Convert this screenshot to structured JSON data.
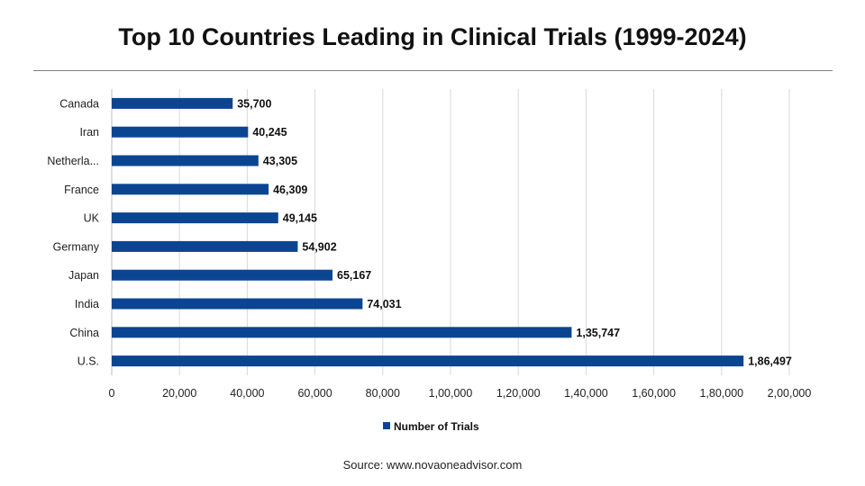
{
  "title": "Top 10 Countries Leading in Clinical Trials (1999-2024)",
  "source": "Source: www.novaoneadvisor.com",
  "colors": {
    "bar": "#0b4592",
    "grid": "#d9d9d9",
    "axis_text": "#222222",
    "label": "#111111"
  },
  "chart_data": {
    "type": "bar",
    "orientation": "horizontal",
    "categories": [
      "Canada",
      "Iran",
      "Netherla...",
      "France",
      "UK",
      "Germany",
      "Japan",
      "India",
      "China",
      "U.S."
    ],
    "series": [
      {
        "name": "Number of Trials",
        "values": [
          35700,
          40245,
          43305,
          46309,
          49145,
          54902,
          65167,
          74031,
          135747,
          186497
        ],
        "labels": [
          "35,700",
          "40,245",
          "43,305",
          "46,309",
          "49,145",
          "54,902",
          "65,167",
          "74,031",
          "1,35,747",
          "1,86,497"
        ]
      }
    ],
    "xlim": [
      0,
      200000
    ],
    "x_ticks": [
      0,
      20000,
      40000,
      60000,
      80000,
      100000,
      120000,
      140000,
      160000,
      180000,
      200000
    ],
    "x_tick_labels": [
      "0",
      "20,000",
      "40,000",
      "60,000",
      "80,000",
      "1,00,000",
      "1,20,000",
      "1,40,000",
      "1,60,000",
      "1,80,000",
      "2,00,000"
    ],
    "grid": true,
    "legend_position": "bottom"
  }
}
